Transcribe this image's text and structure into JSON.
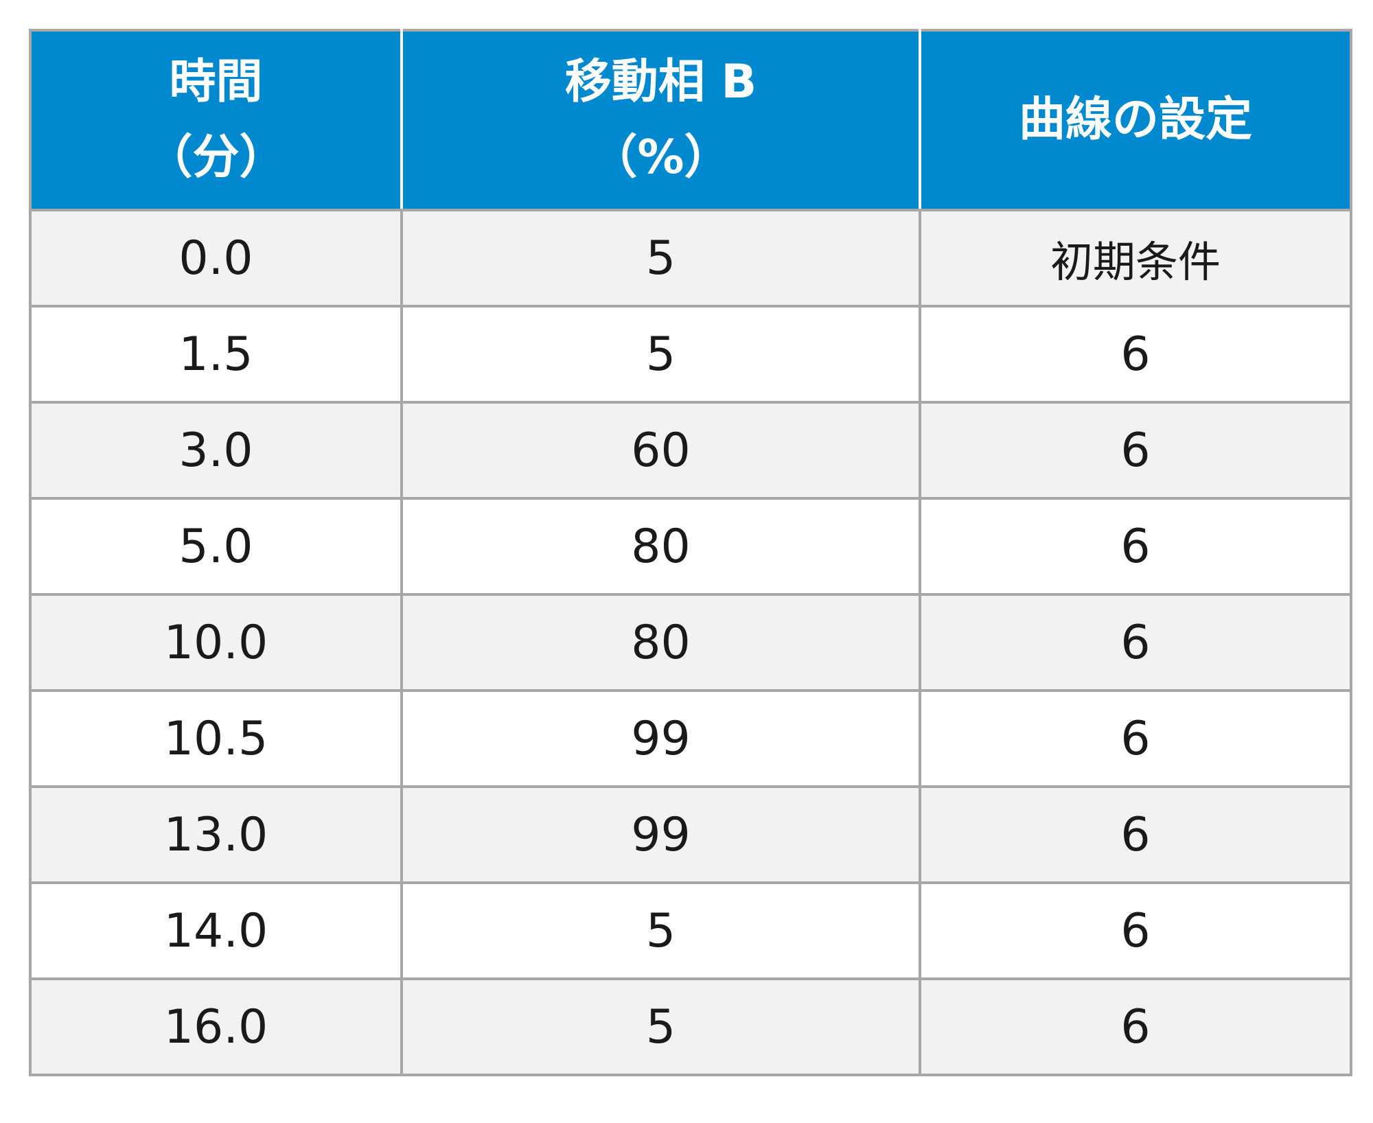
{
  "table": {
    "headers": [
      {
        "line1": "時間",
        "line2": "（分）"
      },
      {
        "line1": "移動相 B",
        "line2": "（%）"
      },
      {
        "line1": "曲線の設定",
        "line2": ""
      }
    ],
    "rows": [
      [
        "0.0",
        "5",
        "初期条件"
      ],
      [
        "1.5",
        "5",
        "6"
      ],
      [
        "3.0",
        "60",
        "6"
      ],
      [
        "5.0",
        "80",
        "6"
      ],
      [
        "10.0",
        "80",
        "6"
      ],
      [
        "10.5",
        "99",
        "6"
      ],
      [
        "13.0",
        "99",
        "6"
      ],
      [
        "14.0",
        "5",
        "6"
      ],
      [
        "16.0",
        "5",
        "6"
      ]
    ]
  },
  "colors": {
    "header_background": "#0189cf",
    "header_text": "#ffffff",
    "row_odd_background": "#f2f2f4",
    "row_even_background": "#ffffff",
    "grid_line": "#a7a7a7"
  }
}
